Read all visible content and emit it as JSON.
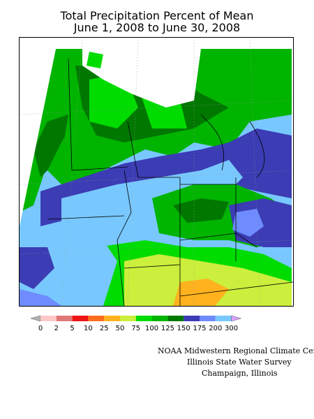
{
  "title_line1": "Total Precipitation Percent of Mean",
  "title_line2": "June 1, 2008 to June 30, 2008",
  "legend": {
    "labels": [
      "0",
      "2",
      "5",
      "10",
      "25",
      "50",
      "75",
      "100",
      "125",
      "150",
      "175",
      "200",
      "300"
    ],
    "colors": [
      "#b4b4b4",
      "#ffc8c8",
      "#e07878",
      "#ee1414",
      "#ff6e1e",
      "#ffb21e",
      "#ccee3c",
      "#00dc00",
      "#00b400",
      "#007800",
      "#3c3cb4",
      "#6e8cff",
      "#78c8ff",
      "#dca0ff"
    ]
  },
  "credits": {
    "line1": "NOAA Midwestern Regional Climate Cent",
    "line2": "Illinois State Water Survey",
    "line3": "Champaign, Illinois"
  }
}
